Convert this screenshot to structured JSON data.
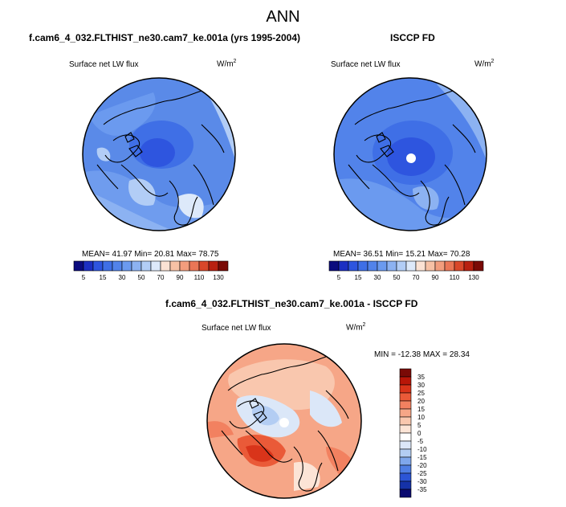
{
  "figure": {
    "season": "ANN",
    "diff_title": "f.cam6_4_032.FLTHIST_ne30.cam7_ke.001a - ISCCP FD"
  },
  "panels": [
    {
      "title": "f.cam6_4_032.FLTHIST_ne30.cam7_ke.001a (yrs 1995-2004)",
      "variable": "Surface net LW flux",
      "units_base": "W/m",
      "units_exp": "2",
      "stats": "MEAN=  41.97  Min=  20.81  Max=  78.75"
    },
    {
      "title": "ISCCP FD",
      "variable": "Surface net LW flux",
      "units_base": "W/m",
      "units_exp": "2",
      "stats": "MEAN=  36.51  Min=  15.21  Max=  70.28"
    },
    {
      "variable": "Surface net LW flux",
      "units_base": "W/m",
      "units_exp": "2",
      "stats": "MIN = -12.38 MAX =  28.34"
    }
  ],
  "colorbar_abs": {
    "labels": [
      "5",
      "15",
      "30",
      "50",
      "70",
      "90",
      "110",
      "130"
    ],
    "colors": [
      "#0b0b7e",
      "#1c2fc2",
      "#2e55df",
      "#3f6fe6",
      "#5283ea",
      "#6b9aef",
      "#8cb2f2",
      "#b2cdf6",
      "#dde9fa",
      "#fbe2d4",
      "#f7c1a5",
      "#f29d7d",
      "#ea7656",
      "#d9472a",
      "#b82010",
      "#7a0a06"
    ]
  },
  "colorbar_diff": {
    "labels": [
      "35",
      "30",
      "25",
      "20",
      "15",
      "10",
      "5",
      "0",
      "-5",
      "-10",
      "-15",
      "-20",
      "-25",
      "-30",
      "-35"
    ],
    "colors": [
      "#7a0a06",
      "#b81608",
      "#d9341a",
      "#ea5a38",
      "#f28160",
      "#f6a687",
      "#f9c7ae",
      "#fce4d6",
      "#ffffff",
      "#dbe7f8",
      "#b3cdf3",
      "#7fa7ec",
      "#4f7ee4",
      "#2c55d6",
      "#1532a8",
      "#0a0a70"
    ]
  }
}
